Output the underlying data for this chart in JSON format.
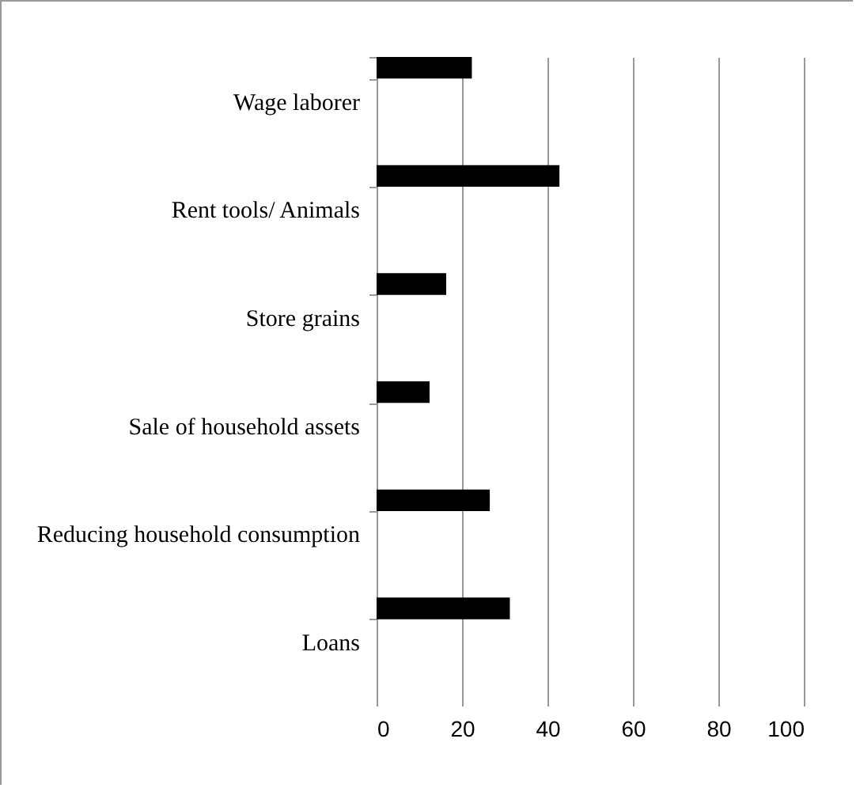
{
  "chart_data": {
    "type": "bar",
    "orientation": "horizontal",
    "categories": [
      "Wage laborer",
      "Rent tools/ Animals",
      "Store grains",
      "Sale of household assets",
      "Reducing household consumption",
      "Loans"
    ],
    "values": [
      22.3,
      42.8,
      16.3,
      12.4,
      26.5,
      31.2
    ],
    "color": "#000000",
    "xlim": [
      0,
      100
    ],
    "xticks": [
      0,
      20,
      40,
      60,
      80,
      100
    ],
    "grid": "x"
  }
}
